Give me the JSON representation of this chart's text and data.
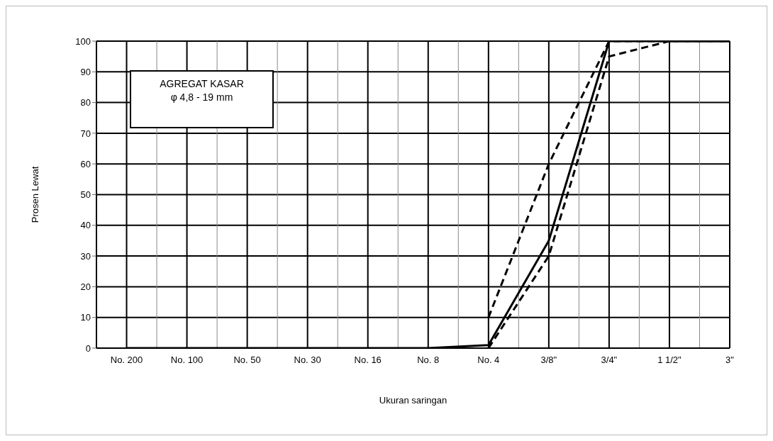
{
  "chart_data": {
    "type": "line",
    "xlabel": "Ukuran saringan",
    "ylabel": "Prosen Lewat",
    "categories": [
      "No. 200",
      "No. 100",
      "No. 50",
      "No. 30",
      "No. 16",
      "No. 8",
      "No. 4",
      "3/8\"",
      "3/4\"",
      "1 1/2\"",
      "3\""
    ],
    "series": [
      {
        "color": "#000000",
        "line_style": "solid",
        "values": [
          0,
          0,
          0,
          0,
          0,
          0,
          1,
          35,
          100,
          100,
          100
        ]
      },
      {
        "color": "#000000",
        "line_style": "dashed",
        "values": [
          null,
          null,
          null,
          null,
          null,
          null,
          10,
          60,
          100,
          100,
          100
        ]
      },
      {
        "color": "#000000",
        "line_style": "dashed",
        "values": [
          null,
          null,
          null,
          null,
          null,
          null,
          0,
          30,
          95,
          100,
          100
        ]
      }
    ],
    "ylim": [
      0,
      100
    ],
    "yticks": [
      0,
      10,
      20,
      30,
      40,
      50,
      60,
      70,
      80,
      90,
      100
    ],
    "grid": true,
    "marker": "none",
    "annotations": [
      "AGREGAT KASAR",
      "φ 4,8 - 19 mm"
    ]
  }
}
